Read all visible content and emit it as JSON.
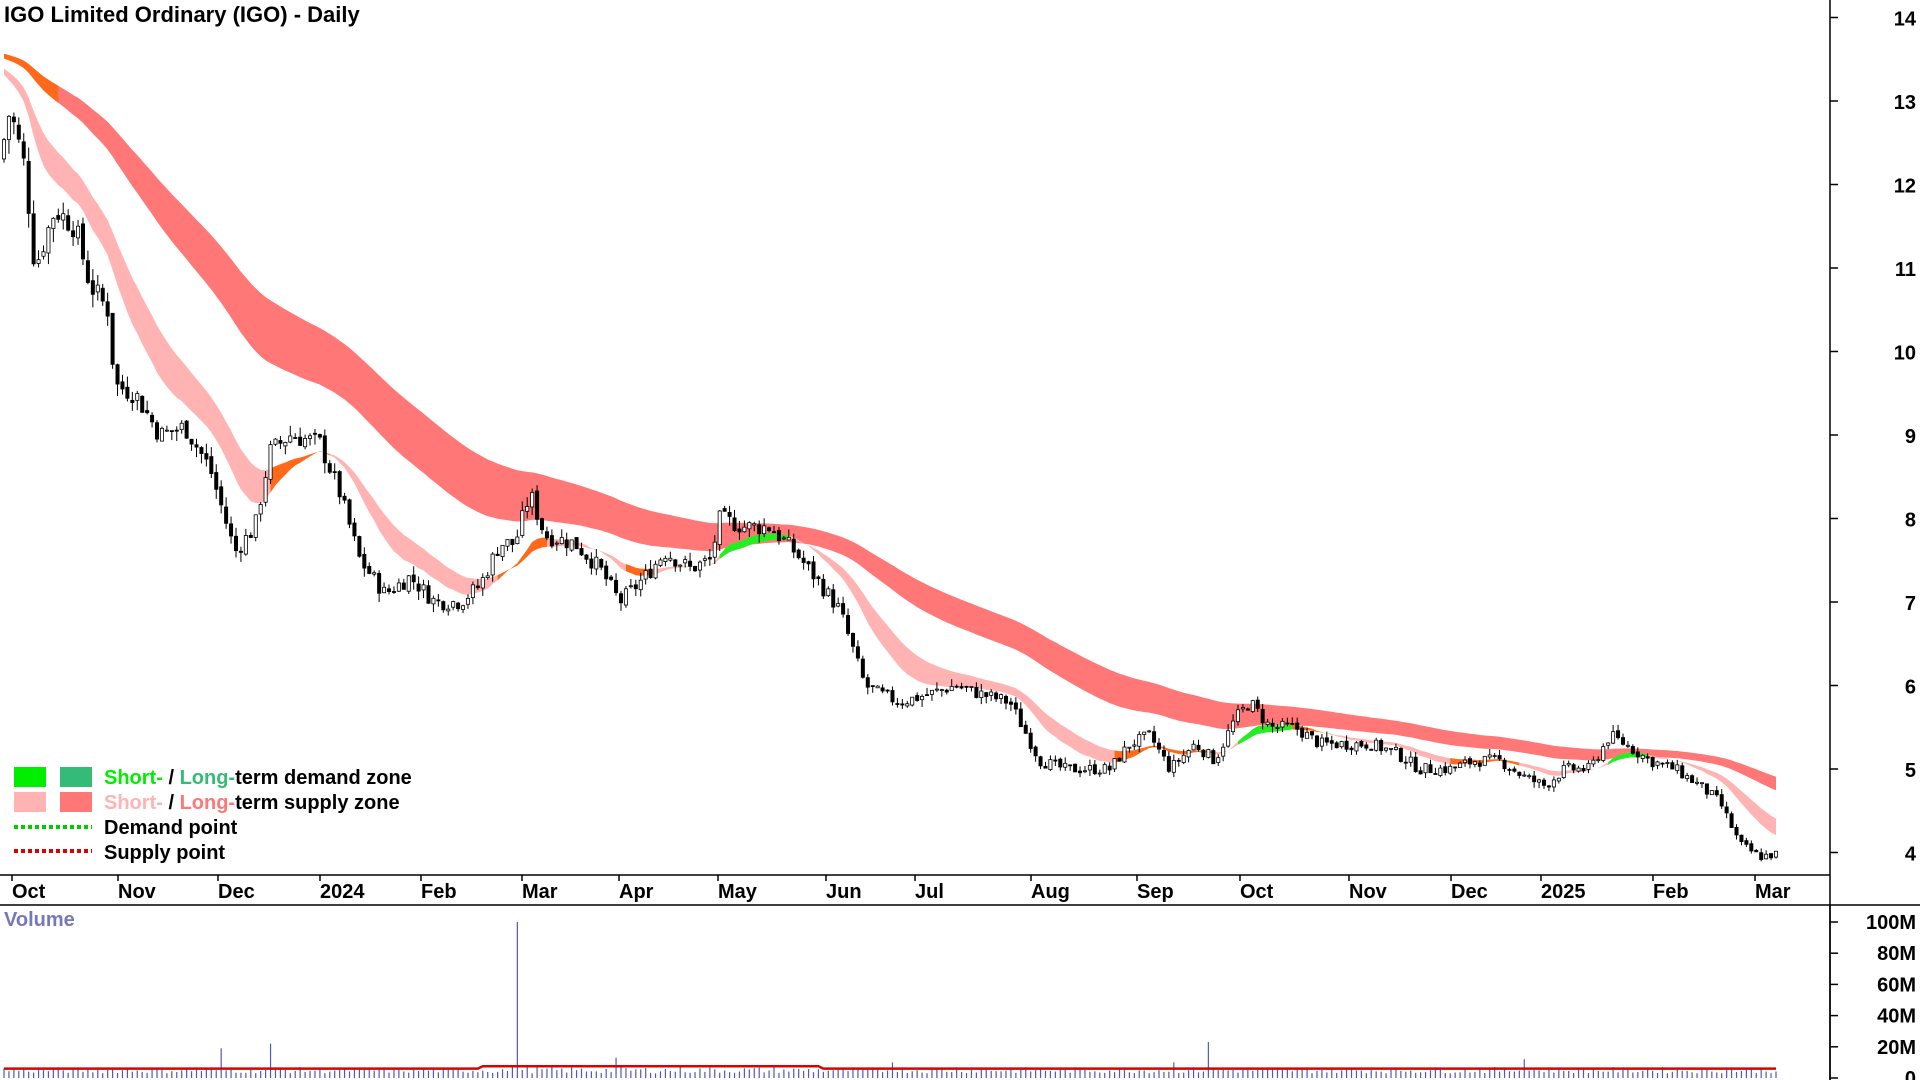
{
  "chart_data": {
    "type": "candlestick",
    "title": "IGO Limited Ordinary (IGO) - Daily",
    "price_axis": {
      "ticks": [
        4,
        5,
        6,
        7,
        8,
        9,
        10,
        11,
        12,
        13,
        14
      ]
    },
    "time_axis": {
      "labels": [
        "Oct",
        "Nov",
        "Dec",
        "2024",
        "Feb",
        "Mar",
        "Apr",
        "May",
        "Jun",
        "Jul",
        "Aug",
        "Sep",
        "Oct",
        "Nov",
        "Dec",
        "2025",
        "Feb",
        "Mar"
      ]
    },
    "approx_close": [
      {
        "month": "Oct 2023",
        "price": 12.0
      },
      {
        "month": "Nov 2023",
        "price": 9.6
      },
      {
        "month": "Dec 2023",
        "price": 7.8
      },
      {
        "month": "Jan 2024",
        "price": 8.9
      },
      {
        "month": "Feb 2024",
        "price": 7.1
      },
      {
        "month": "Mar 2024",
        "price": 7.7
      },
      {
        "month": "Apr 2024",
        "price": 7.4
      },
      {
        "month": "May 2024",
        "price": 7.8
      },
      {
        "month": "Jun 2024",
        "price": 6.0
      },
      {
        "month": "Jul 2024",
        "price": 5.9
      },
      {
        "month": "Aug 2024",
        "price": 5.1
      },
      {
        "month": "Sep 2024",
        "price": 5.0
      },
      {
        "month": "Oct 2024",
        "price": 5.5
      },
      {
        "month": "Nov 2024",
        "price": 5.3
      },
      {
        "month": "Dec 2024",
        "price": 5.0
      },
      {
        "month": "Jan 2025",
        "price": 5.1
      },
      {
        "month": "Feb 2025",
        "price": 4.8
      },
      {
        "month": "Mar 2025",
        "price": 4.0
      }
    ],
    "bands": [
      {
        "name": "short-term zone",
        "color": "#ffb3b3"
      },
      {
        "name": "long-term zone",
        "color": "#ff7777"
      }
    ],
    "volume": {
      "title": "Volume",
      "ticks": [
        "0",
        "20M",
        "40M",
        "60M",
        "80M",
        "100M"
      ],
      "spike_value_m": 100
    },
    "legend": [
      {
        "short": "Short-",
        "sep": " / ",
        "long": "Long-",
        "rest": "term demand zone",
        "short_color": "#00ee00",
        "long_color": "#33bb77"
      },
      {
        "short": "Short-",
        "sep": " / ",
        "long": "Long-",
        "rest": "term supply zone",
        "short_color": "#ffb3b3",
        "long_color": "#ff7777"
      },
      {
        "label": "Demand point",
        "color": "#00cc00"
      },
      {
        "label": "Supply point",
        "color": "#dd0000"
      }
    ]
  }
}
